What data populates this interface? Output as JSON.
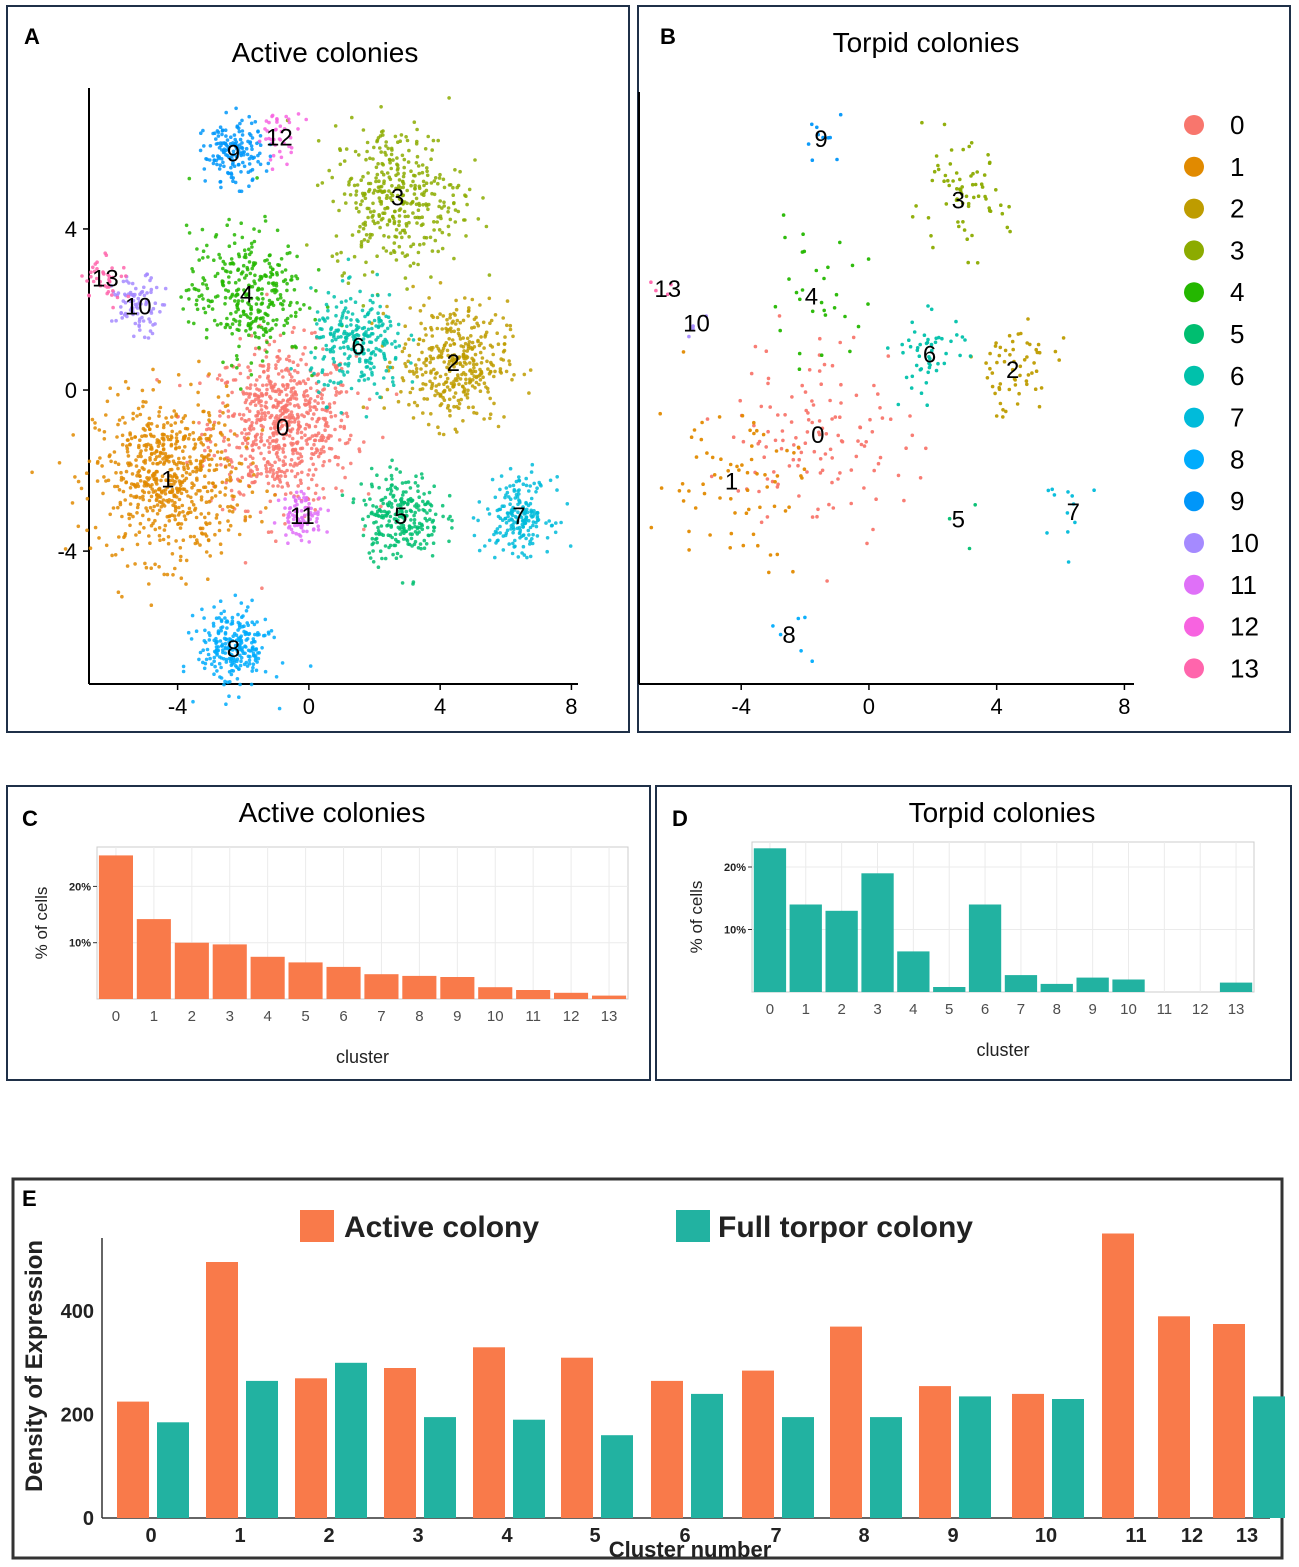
{
  "colors": {
    "active": "#F97A4A",
    "torpid": "#22B2A1",
    "panel_border": "#1f3048",
    "grid": "#ebebeb",
    "axis_text": "#4d4d4d",
    "cluster_palette": [
      "#F8766D",
      "#E18A00",
      "#BE9C00",
      "#8CAB00",
      "#24B700",
      "#00BE70",
      "#00C1AB",
      "#00BBDA",
      "#00ACFC",
      "#0096F9",
      "#A58AFF",
      "#DF70F8",
      "#F763E0",
      "#FF65AC"
    ]
  },
  "panel_letters": {
    "a": "A",
    "b": "B",
    "c": "C",
    "d": "D",
    "e": "E"
  },
  "legend": {
    "labels": [
      "0",
      "1",
      "2",
      "3",
      "4",
      "5",
      "6",
      "7",
      "8",
      "9",
      "10",
      "11",
      "12",
      "13"
    ]
  },
  "chart_data": [
    {
      "id": "A",
      "type": "scatter",
      "title": "Active colonies",
      "xlim": [
        -6.7,
        8.2
      ],
      "ylim": [
        -7.3,
        7.5
      ],
      "xticks": [
        "-4",
        "0",
        "4",
        "8"
      ],
      "yticks": [
        "-4",
        "0",
        "4"
      ],
      "cluster_centers": [
        {
          "label": "0",
          "x": -0.8,
          "y": -0.9
        },
        {
          "label": "1",
          "x": -4.3,
          "y": -2.2
        },
        {
          "label": "2",
          "x": 4.4,
          "y": 0.7
        },
        {
          "label": "3",
          "x": 2.7,
          "y": 4.8
        },
        {
          "label": "4",
          "x": -1.9,
          "y": 2.4
        },
        {
          "label": "5",
          "x": 2.8,
          "y": -3.1
        },
        {
          "label": "6",
          "x": 1.5,
          "y": 1.1
        },
        {
          "label": "7",
          "x": 6.4,
          "y": -3.1
        },
        {
          "label": "8",
          "x": -2.3,
          "y": -6.4
        },
        {
          "label": "9",
          "x": -2.3,
          "y": 5.9
        },
        {
          "label": "10",
          "x": -5.2,
          "y": 2.1
        },
        {
          "label": "11",
          "x": -0.2,
          "y": -3.1
        },
        {
          "label": "12",
          "x": -0.9,
          "y": 6.3
        },
        {
          "label": "13",
          "x": -6.2,
          "y": 2.8
        }
      ]
    },
    {
      "id": "B",
      "type": "scatter",
      "title": "Torpid colonies",
      "xlim": [
        -7.2,
        8.3
      ],
      "ylim": [
        -7.6,
        7.8
      ],
      "xticks": [
        "-4",
        "0",
        "4",
        "8"
      ],
      "yticks": [],
      "cluster_centers": [
        {
          "label": "0",
          "x": -1.6,
          "y": -1.1
        },
        {
          "label": "1",
          "x": -4.3,
          "y": -2.3
        },
        {
          "label": "2",
          "x": 4.5,
          "y": 0.6
        },
        {
          "label": "3",
          "x": 2.8,
          "y": 5.0
        },
        {
          "label": "4",
          "x": -1.8,
          "y": 2.5
        },
        {
          "label": "5",
          "x": 2.8,
          "y": -3.3
        },
        {
          "label": "6",
          "x": 1.9,
          "y": 1.0
        },
        {
          "label": "7",
          "x": 6.4,
          "y": -3.1
        },
        {
          "label": "8",
          "x": -2.5,
          "y": -6.3
        },
        {
          "label": "9",
          "x": -1.5,
          "y": 6.6
        },
        {
          "label": "10",
          "x": -5.4,
          "y": 1.8
        },
        {
          "label": "13",
          "x": -6.3,
          "y": 2.7
        }
      ]
    },
    {
      "id": "C",
      "type": "bar",
      "title": "Active colonies",
      "xlabel": "cluster",
      "ylabel": "% of cells",
      "ylim": [
        0,
        27
      ],
      "ytick_values": [
        10,
        20
      ],
      "ytick_labels": [
        "10%",
        "20%"
      ],
      "categories": [
        "0",
        "1",
        "2",
        "3",
        "4",
        "5",
        "6",
        "7",
        "8",
        "9",
        "10",
        "11",
        "12",
        "13"
      ],
      "values": [
        25.5,
        14.2,
        10.0,
        9.7,
        7.5,
        6.5,
        5.7,
        4.4,
        4.1,
        3.9,
        2.1,
        1.6,
        1.1,
        0.6
      ]
    },
    {
      "id": "D",
      "type": "bar",
      "title": "Torpid colonies",
      "xlabel": "cluster",
      "ylabel": "% of cells",
      "ylim": [
        0,
        24
      ],
      "ytick_values": [
        10,
        20
      ],
      "ytick_labels": [
        "10%",
        "20%"
      ],
      "categories": [
        "0",
        "1",
        "2",
        "3",
        "4",
        "5",
        "6",
        "7",
        "8",
        "9",
        "10",
        "11",
        "12",
        "13"
      ],
      "values": [
        23.0,
        14.0,
        13.0,
        19.0,
        6.5,
        0.8,
        14.0,
        2.7,
        1.3,
        2.3,
        2.0,
        0,
        0,
        1.5
      ]
    },
    {
      "id": "E",
      "type": "bar",
      "title": "",
      "xlabel": "Cluster number",
      "ylabel": "Density of Expression",
      "ylim": [
        0,
        580
      ],
      "ytick_values": [
        0,
        200,
        400
      ],
      "ytick_labels": [
        "0",
        "200",
        "400"
      ],
      "categories": [
        "0",
        "1",
        "2",
        "3",
        "4",
        "5",
        "6",
        "7",
        "8",
        "9",
        "10",
        "11",
        "12",
        "13"
      ],
      "series": [
        {
          "name": "Active colony",
          "values": [
            225,
            495,
            270,
            290,
            330,
            310,
            265,
            285,
            370,
            255,
            240,
            550,
            390,
            375
          ]
        },
        {
          "name": "Full torpor colony",
          "values": [
            185,
            265,
            300,
            195,
            190,
            160,
            240,
            195,
            195,
            235,
            230,
            null,
            null,
            235
          ]
        }
      ]
    }
  ]
}
